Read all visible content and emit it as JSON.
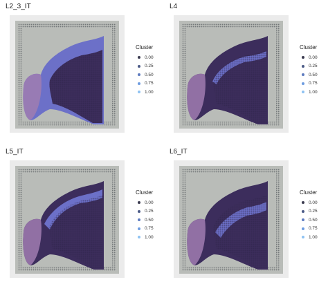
{
  "chart_data": [
    {
      "type": "scatter",
      "title": "L2_3_IT",
      "legend_title": "Cluster",
      "legend": [
        "0.00",
        "0.25",
        "0.50",
        "0.75",
        "1.00"
      ],
      "color_scale": [
        "#3b3b4f",
        "#4b5a86",
        "#5d7bbf",
        "#6d9ce0",
        "#8ec2f2"
      ],
      "background_color": "#b9bcb8",
      "tissue_colors": [
        "#3c2d5c",
        "#6c70c8",
        "#a07cb0"
      ],
      "x_axis_labels": [],
      "y_axis_labels": []
    },
    {
      "type": "scatter",
      "title": "L4",
      "legend_title": "Cluster",
      "legend": [
        "0.00",
        "0.25",
        "0.50",
        "0.75",
        "1.00"
      ],
      "color_scale": [
        "#3b3b4f",
        "#4b5a86",
        "#5d7bbf",
        "#6d9ce0",
        "#8ec2f2"
      ],
      "background_color": "#b9bcb8",
      "tissue_colors": [
        "#3c2d5c",
        "#6c70c8",
        "#a07cb0"
      ],
      "x_axis_labels": [],
      "y_axis_labels": []
    },
    {
      "type": "scatter",
      "title": "L5_IT",
      "legend_title": "Cluster",
      "legend": [
        "0.00",
        "0.25",
        "0.50",
        "0.75",
        "1.00"
      ],
      "color_scale": [
        "#3b3b4f",
        "#4b5a86",
        "#5d7bbf",
        "#6d9ce0",
        "#8ec2f2"
      ],
      "background_color": "#b9bcb8",
      "tissue_colors": [
        "#3c2d5c",
        "#6c70c8",
        "#a07cb0"
      ],
      "x_axis_labels": [],
      "y_axis_labels": []
    },
    {
      "type": "scatter",
      "title": "L6_IT",
      "legend_title": "Cluster",
      "legend": [
        "0.00",
        "0.25",
        "0.50",
        "0.75",
        "1.00"
      ],
      "color_scale": [
        "#3b3b4f",
        "#4b5a86",
        "#5d7bbf",
        "#6d9ce0",
        "#8ec2f2"
      ],
      "background_color": "#b9bcb8",
      "tissue_colors": [
        "#3c2d5c",
        "#6c70c8",
        "#a07cb0"
      ],
      "x_axis_labels": [],
      "y_axis_labels": []
    }
  ]
}
